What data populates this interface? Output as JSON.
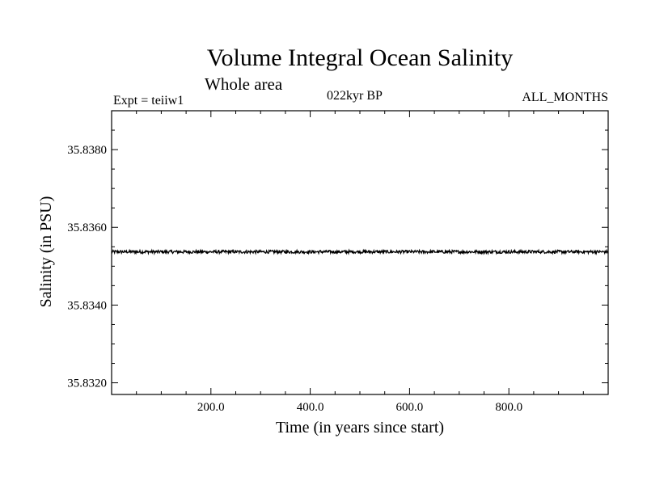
{
  "chart_data": {
    "type": "line",
    "title": "Volume Integral Ocean Salinity",
    "subtitle": "Whole area",
    "annotations": {
      "experiment": "Expt = teiiw1",
      "period": "022kyr BP",
      "months": "ALL_MONTHS"
    },
    "xlabel": "Time (in years since start)",
    "ylabel": "Salinity (in PSU)",
    "xlim": [
      0,
      1000
    ],
    "ylim": [
      35.8317,
      35.839
    ],
    "x_ticks": [
      200,
      400,
      600,
      800
    ],
    "x_tick_labels": [
      "200.0",
      "400.0",
      "600.0",
      "800.0"
    ],
    "y_ticks": [
      35.832,
      35.834,
      35.836,
      35.838
    ],
    "y_tick_labels": [
      "35.8320",
      "35.8340",
      "35.8360",
      "35.8380"
    ],
    "grid": false,
    "series": [
      {
        "x_start": 0,
        "x_end": 1000,
        "x_step": 1,
        "mean": 35.83537,
        "noise_amplitude": 4e-05,
        "values_sample": [
          {
            "x": 0,
            "y": 35.8354
          },
          {
            "x": 200,
            "y": 35.8354
          },
          {
            "x": 400,
            "y": 35.8354
          },
          {
            "x": 600,
            "y": 35.8354
          },
          {
            "x": 800,
            "y": 35.8354
          },
          {
            "x": 1000,
            "y": 35.8354
          }
        ]
      }
    ]
  }
}
